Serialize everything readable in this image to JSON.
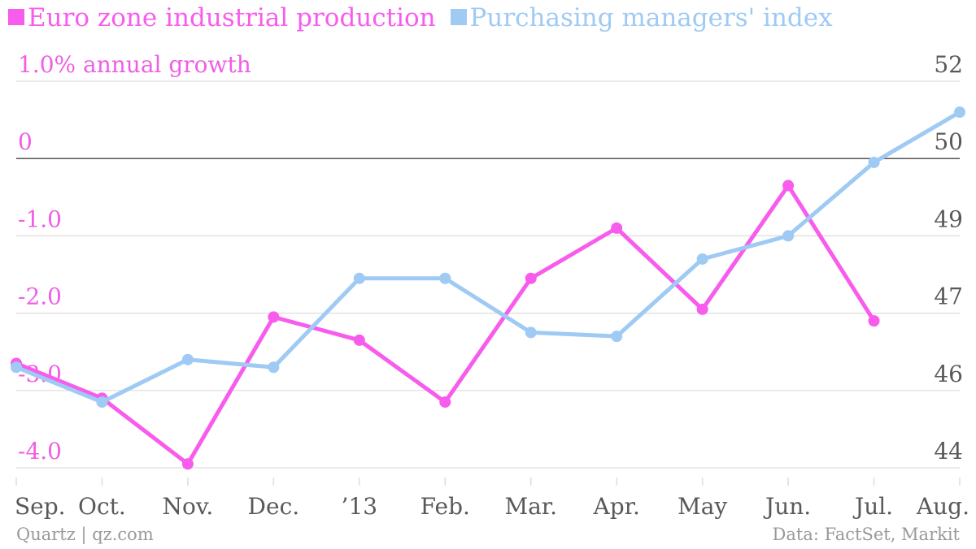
{
  "colors": {
    "production": "#f75ced",
    "pmi": "#9fcaf4",
    "left_axis_text": "#f05ee5",
    "right_axis_text": "#595959",
    "x_tick_text": "#595959",
    "grid": "#dddddd",
    "zero_line": "#555555",
    "footer_text": "#999999"
  },
  "legend": {
    "production_label": "Euro zone industrial production",
    "pmi_label": "Purchasing managers' index"
  },
  "footer": {
    "source_left": "Quartz | qz.com",
    "source_right": "Data: FactSet, Markit"
  },
  "chart_data": {
    "type": "line",
    "categories": [
      "Sep.",
      "Oct.",
      "Nov.",
      "Dec.",
      "’13",
      "Feb.",
      "Mar.",
      "Apr.",
      "May",
      "Jun.",
      "Jul.",
      "Aug."
    ],
    "left_axis": {
      "unit_label": "1.0% annual growth",
      "ticks": [
        1.0,
        0,
        -1.0,
        -2.0,
        -3.0,
        -4.0
      ],
      "tick_labels": [
        "1.0% annual growth",
        "0",
        "-1.0",
        "-2.0",
        "-3.0",
        "-4.0"
      ],
      "range": [
        -4.0,
        1.0
      ]
    },
    "right_axis": {
      "tick_labels": [
        "52",
        "50",
        "49",
        "47",
        "46",
        "44"
      ]
    },
    "grid": true,
    "legend_position": "top-left",
    "series": [
      {
        "name": "Euro zone industrial production",
        "axis": "left",
        "values": [
          -2.65,
          -3.1,
          -3.95,
          -2.05,
          -2.35,
          -3.15,
          -1.55,
          -0.9,
          -1.95,
          -0.35,
          -2.1,
          null
        ]
      },
      {
        "name": "Purchasing managers' index",
        "axis": "left",
        "values": [
          -2.7,
          -3.15,
          -2.6,
          -2.7,
          -1.55,
          -1.55,
          -2.25,
          -2.3,
          -1.3,
          -1.0,
          -0.05,
          0.6
        ]
      }
    ]
  }
}
